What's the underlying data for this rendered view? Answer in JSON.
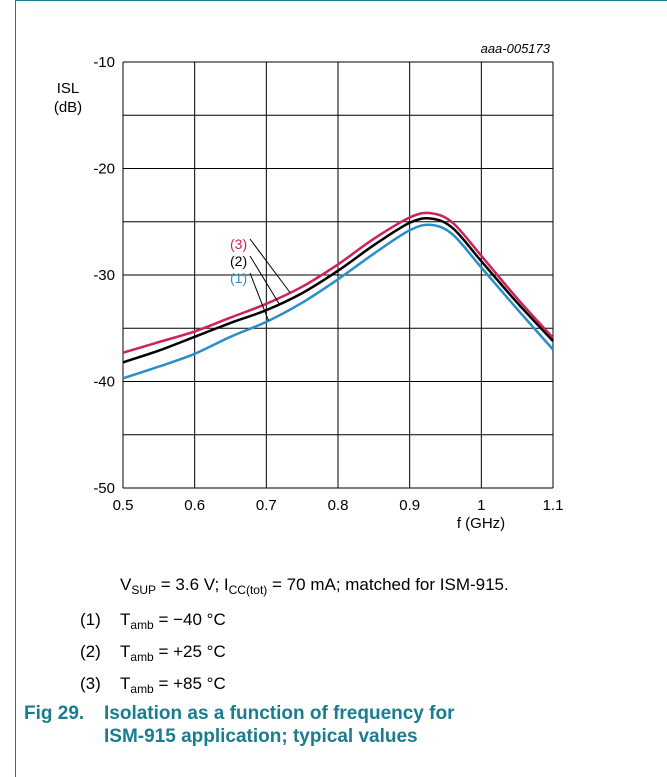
{
  "chart_data": {
    "type": "line",
    "id_label": "aaa-005173",
    "ylabel_line1": "ISL",
    "ylabel_line2": "(dB)",
    "xlabel": "f (GHz)",
    "xlim": [
      0.5,
      1.1
    ],
    "ylim": [
      -50,
      -10
    ],
    "x_ticks": [
      0.5,
      0.6,
      0.7,
      0.8,
      0.9,
      1,
      1.1
    ],
    "x_tick_labels": [
      "0.5",
      "0.6",
      "0.7",
      "0.8",
      "0.9",
      "1",
      "1.1"
    ],
    "y_ticks": [
      -50,
      -40,
      -30,
      -20,
      -10
    ],
    "y_tick_labels": [
      "-50",
      "-40",
      "-30",
      "-20",
      "-10"
    ],
    "grid": true,
    "series": [
      {
        "name": "(1)",
        "color": "#2a8fc9",
        "x": [
          0.5,
          0.55,
          0.6,
          0.65,
          0.7,
          0.75,
          0.8,
          0.85,
          0.9,
          0.93,
          0.96,
          1.0,
          1.05,
          1.1
        ],
        "y": [
          -39.7,
          -38.6,
          -37.4,
          -35.8,
          -34.4,
          -32.6,
          -30.4,
          -28.0,
          -25.8,
          -25.3,
          -26.2,
          -29.3,
          -33.2,
          -37.0
        ]
      },
      {
        "name": "(2)",
        "color": "#000000",
        "x": [
          0.5,
          0.55,
          0.6,
          0.65,
          0.7,
          0.75,
          0.8,
          0.85,
          0.9,
          0.93,
          0.96,
          1.0,
          1.05,
          1.1
        ],
        "y": [
          -38.2,
          -37.1,
          -35.8,
          -34.5,
          -33.3,
          -31.7,
          -29.6,
          -27.2,
          -25.1,
          -24.7,
          -25.6,
          -28.7,
          -32.6,
          -36.2
        ]
      },
      {
        "name": "(3)",
        "color": "#d0215b",
        "x": [
          0.5,
          0.55,
          0.6,
          0.65,
          0.7,
          0.75,
          0.8,
          0.85,
          0.9,
          0.93,
          0.96,
          1.0,
          1.05,
          1.1
        ],
        "y": [
          -37.3,
          -36.3,
          -35.3,
          -34.0,
          -32.7,
          -31.1,
          -29.0,
          -26.6,
          -24.6,
          -24.2,
          -25.1,
          -28.2,
          -32.2,
          -35.9
        ]
      }
    ]
  },
  "notes": {
    "cond_v": "V",
    "cond_v_sub": "SUP",
    "cond_mid": " = 3.6 V; I",
    "cond_i_sub": "CC(tot)",
    "cond_end": " = 70 mA; matched for ISM-915.",
    "items": [
      {
        "num": "(1)",
        "t": "T",
        "sub": "amb",
        "val": " = −40 °C"
      },
      {
        "num": "(2)",
        "t": "T",
        "sub": "amb",
        "val": " = +25 °C"
      },
      {
        "num": "(3)",
        "t": "T",
        "sub": "amb",
        "val": " = +85 °C"
      }
    ]
  },
  "caption": {
    "fig": "Fig 29.",
    "line1": "Isolation as a function of frequency for",
    "line2": "ISM-915 application; typical values"
  }
}
